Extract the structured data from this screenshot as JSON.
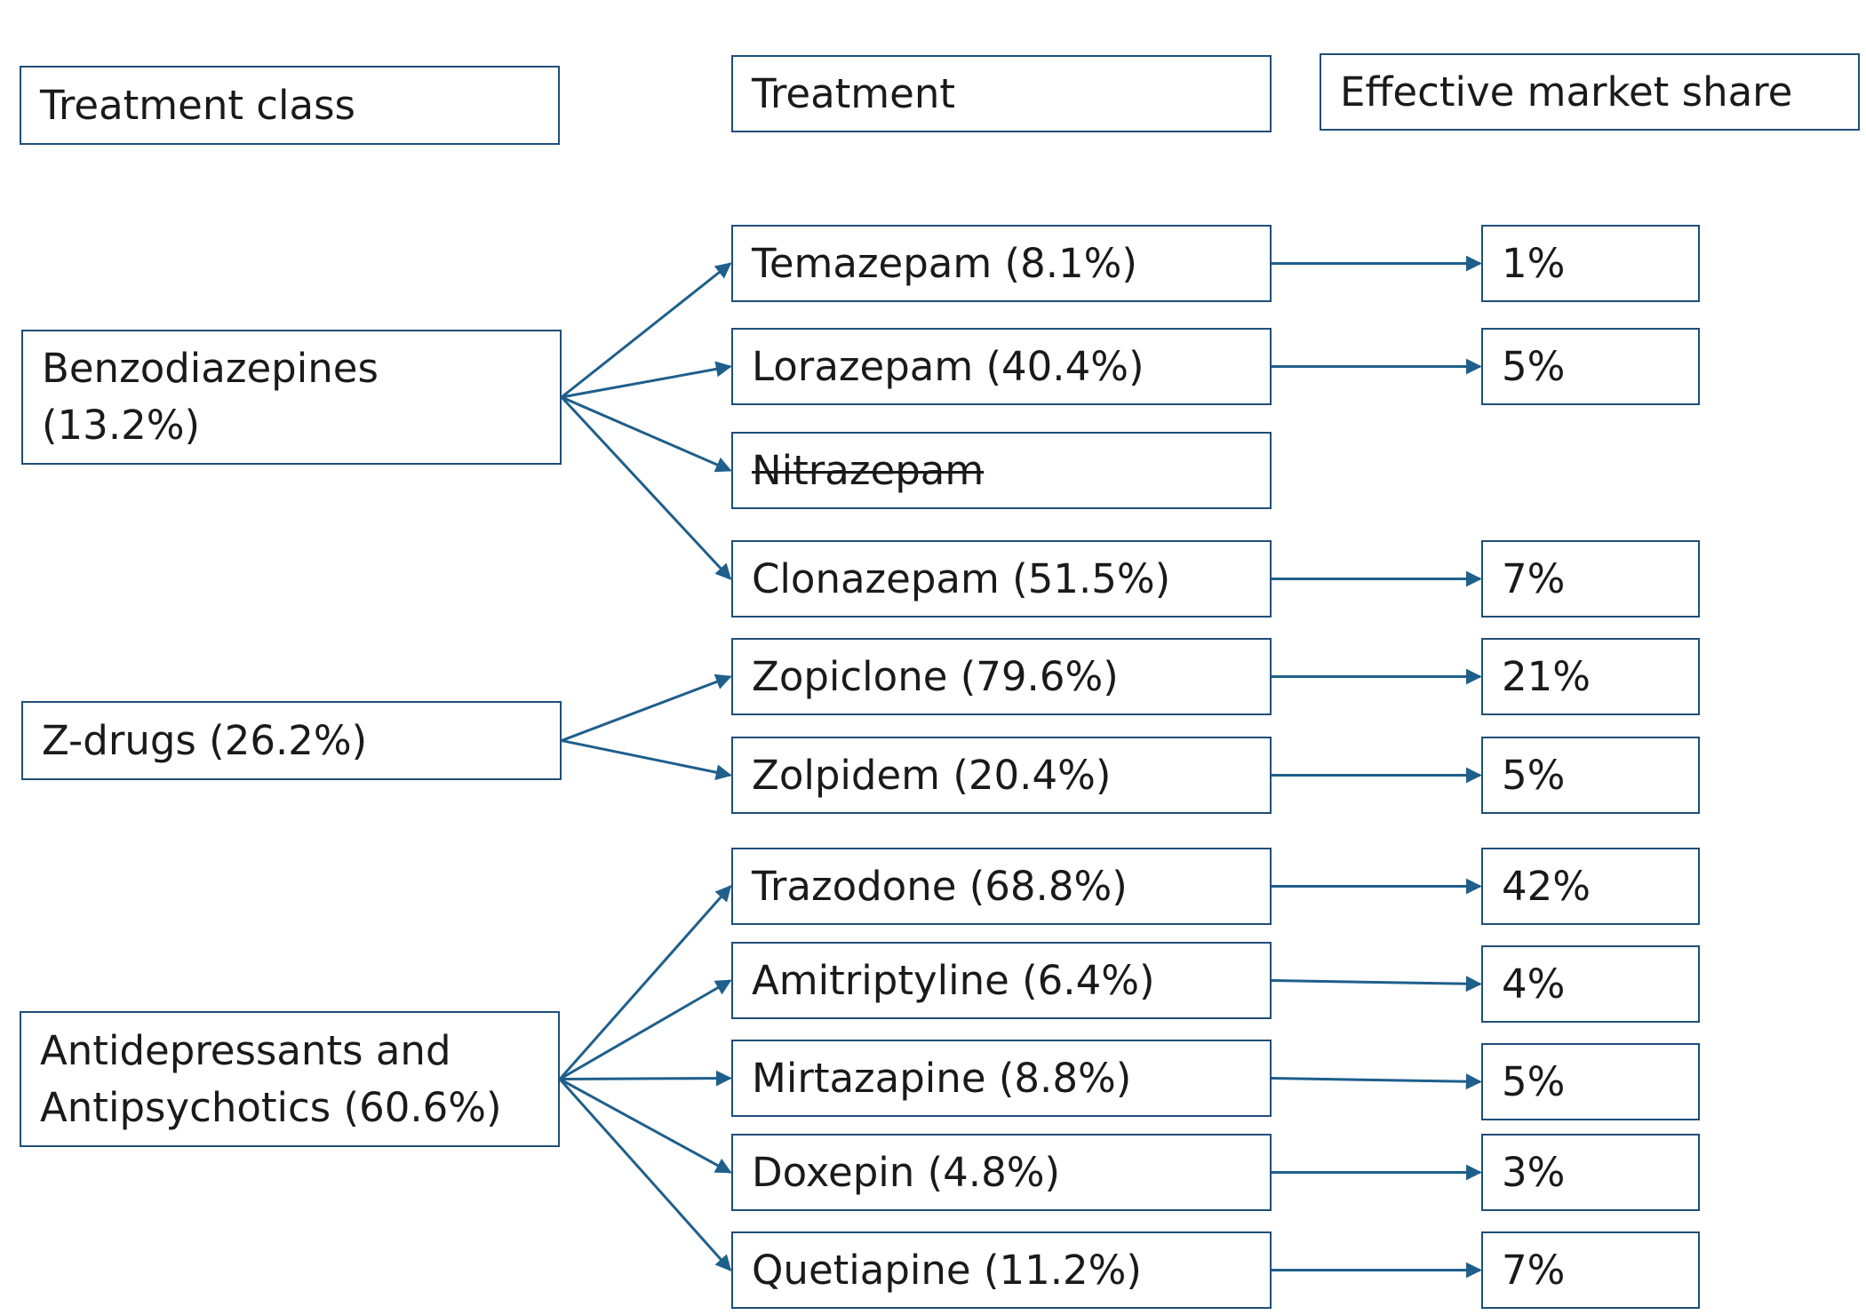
{
  "headers": {
    "class": "Treatment class",
    "treatment": "Treatment",
    "share": "Effective market share"
  },
  "classes": [
    {
      "label_line1": "Benzodiazepines",
      "label_line2": "(13.2%)"
    },
    {
      "label_line1": "Z-drugs (26.2%)"
    },
    {
      "label_line1": "Antidepressants and",
      "label_line2": "Antipsychotics (60.6%)"
    }
  ],
  "treatments": [
    {
      "label": "Temazepam (8.1%)",
      "share": "1%",
      "class_index": 0
    },
    {
      "label": "Lorazepam (40.4%)",
      "share": "5%",
      "class_index": 0
    },
    {
      "label": "Nitrazepam",
      "share": null,
      "class_index": 0,
      "struck_out": true
    },
    {
      "label": "Clonazepam (51.5%)",
      "share": "7%",
      "class_index": 0
    },
    {
      "label": "Zopiclone (79.6%)",
      "share": "21%",
      "class_index": 1
    },
    {
      "label": "Zolpidem (20.4%)",
      "share": "5%",
      "class_index": 1
    },
    {
      "label": "Trazodone (68.8%)",
      "share": "42%",
      "class_index": 2
    },
    {
      "label": "Amitriptyline (6.4%)",
      "share": "4%",
      "class_index": 2
    },
    {
      "label": "Mirtazapine (8.8%)",
      "share": "5%",
      "class_index": 2
    },
    {
      "label": "Doxepin (4.8%)",
      "share": "3%",
      "class_index": 2
    },
    {
      "label": "Quetiapine (11.2%)",
      "share": "7%",
      "class_index": 2
    }
  ],
  "colors": {
    "border": "#1f4e79",
    "arrow": "#1f5f8b",
    "text": "#1a1a1a"
  }
}
